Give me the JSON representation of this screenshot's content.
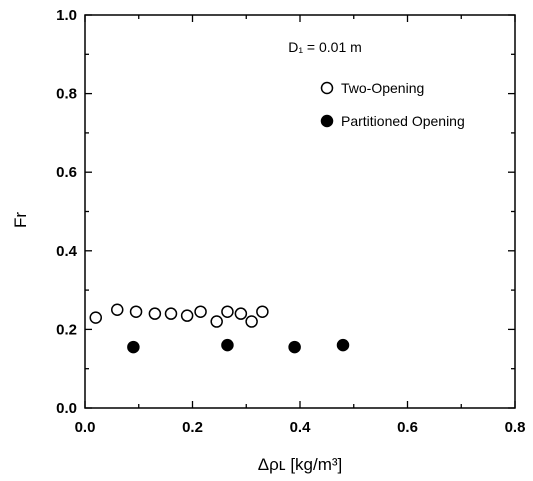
{
  "chart_data": {
    "type": "scatter",
    "xlabel": "Δρʟ  [kg/m³]",
    "ylabel": "Fr",
    "xlim": [
      0,
      0.8
    ],
    "ylim": [
      0,
      1.0
    ],
    "x_ticks": [
      "0.0",
      "0.2",
      "0.4",
      "0.6",
      "0.8"
    ],
    "y_ticks": [
      "0.0",
      "0.2",
      "0.4",
      "0.6",
      "0.8",
      "1.0"
    ],
    "annotation": "D₁ = 0.01 m",
    "grid": false,
    "legend_position": "top-right",
    "series": [
      {
        "name": "Two-Opening",
        "marker": "open-circle",
        "color": "#000000",
        "points": [
          {
            "x": 0.02,
            "y": 0.23
          },
          {
            "x": 0.06,
            "y": 0.25
          },
          {
            "x": 0.095,
            "y": 0.245
          },
          {
            "x": 0.13,
            "y": 0.24
          },
          {
            "x": 0.16,
            "y": 0.24
          },
          {
            "x": 0.19,
            "y": 0.235
          },
          {
            "x": 0.215,
            "y": 0.245
          },
          {
            "x": 0.245,
            "y": 0.22
          },
          {
            "x": 0.265,
            "y": 0.245
          },
          {
            "x": 0.29,
            "y": 0.24
          },
          {
            "x": 0.31,
            "y": 0.22
          },
          {
            "x": 0.33,
            "y": 0.245
          }
        ]
      },
      {
        "name": "Partitioned Opening",
        "marker": "filled-circle",
        "color": "#000000",
        "points": [
          {
            "x": 0.09,
            "y": 0.155
          },
          {
            "x": 0.265,
            "y": 0.16
          },
          {
            "x": 0.39,
            "y": 0.155
          },
          {
            "x": 0.48,
            "y": 0.16
          }
        ]
      }
    ]
  }
}
